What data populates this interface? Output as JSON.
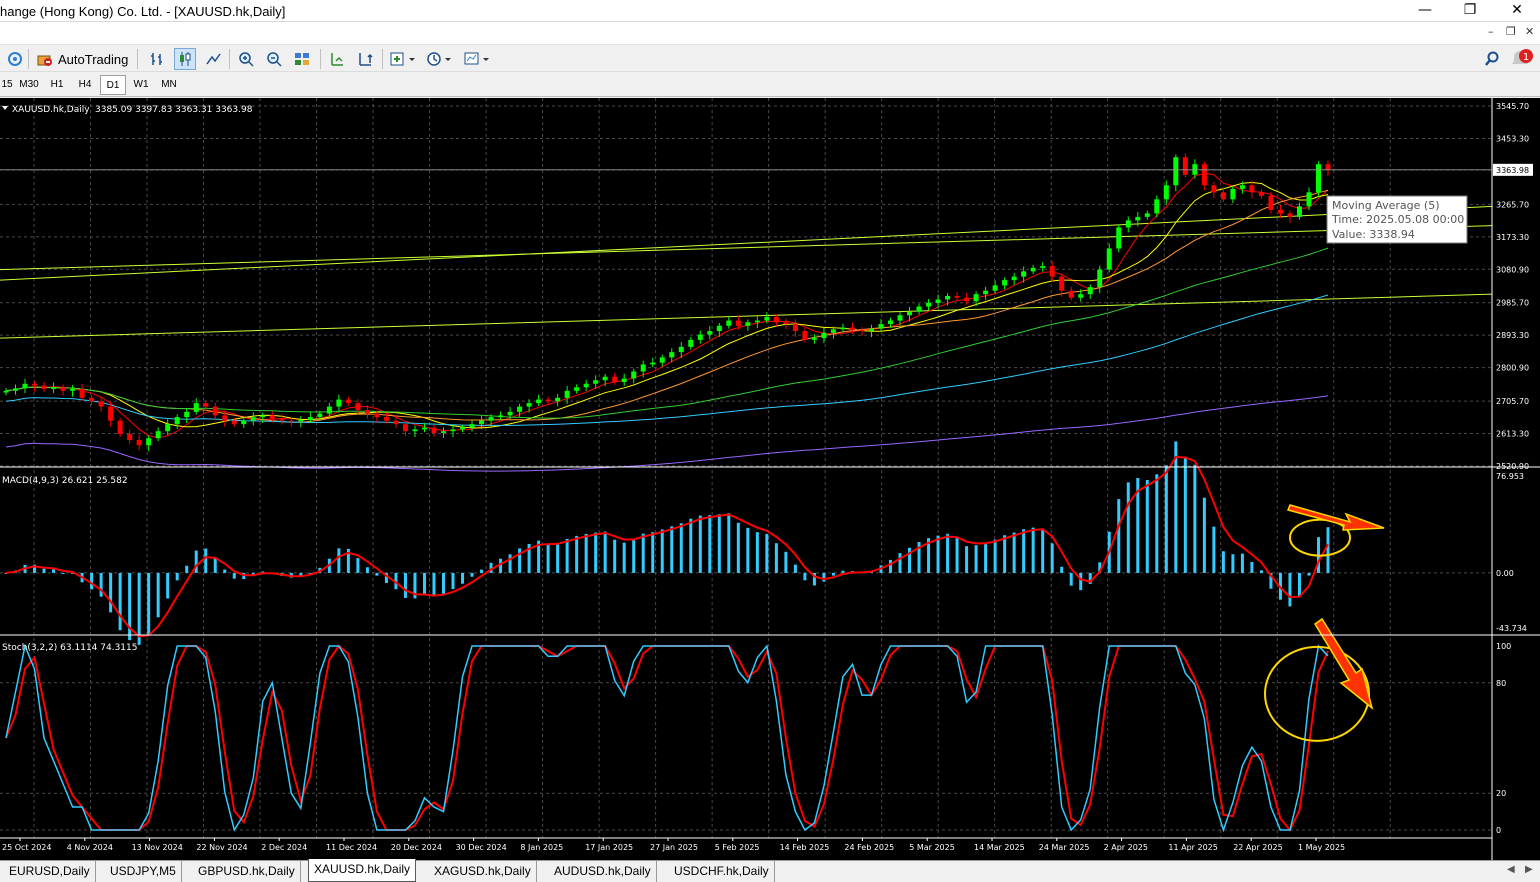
{
  "window": {
    "title": "hange (Hong Kong) Co. Ltd. - [XAUUSD.hk,Daily]",
    "minimize": "—",
    "restore": "❐",
    "close": "✕",
    "mdi_minimize": "–",
    "mdi_restore": "❐",
    "mdi_close": "✕"
  },
  "toolbar": {
    "autotrading_label": "AutoTrading",
    "notification_count": "1",
    "icons": [
      "signal-icon",
      "autotrading-icon",
      "bar-chart-icon",
      "candlestick-icon",
      "line-chart-icon",
      "zoom-in-icon",
      "zoom-out-icon",
      "tile-icon",
      "scroll-icon",
      "autoscroll-icon",
      "indicators-icon",
      "periods-icon",
      "templates-icon",
      "search-icon",
      "notification-icon"
    ]
  },
  "timeframes": [
    "15",
    "M30",
    "H1",
    "H4",
    "D1",
    "W1",
    "MN"
  ],
  "active_timeframe": "D1",
  "colors": {
    "background": "#000000",
    "grid": "#4a4a4a",
    "bull": "#00ff00",
    "bear": "#ff0000",
    "ma5": "#ff0000",
    "ma10": "#ffff00",
    "ma20": "#ff9933",
    "ma50": "#33cc33",
    "ma100": "#33ccff",
    "ma200": "#9966ff",
    "trendline": "#ccff33",
    "macd_hist": "#33ccff",
    "macd_signal": "#ff0000",
    "stoch_main": "#33ccff",
    "stoch_signal": "#ff0000",
    "annotation": "#ffd700",
    "arrow": "#ff3300"
  },
  "chart_data": [
    {
      "type": "candlestick",
      "title": "XAUUSD.hk,Daily",
      "ohlc_label": "3385.09 3397.83 3363.31 3363.98",
      "current_price": "3363.98",
      "ylim": [
        2520.9,
        3545.7
      ],
      "y_ticks": [
        "3545.70",
        "3453.30",
        "3363.98",
        "3265.70",
        "3173.30",
        "3080.90",
        "2985.70",
        "2893.30",
        "2800.90",
        "2705.70",
        "2613.30",
        "2520.90"
      ],
      "x_tick_labels": [
        "25 Oct 2024",
        "4 Nov 2024",
        "13 Nov 2024",
        "22 Nov 2024",
        "2 Dec 2024",
        "11 Dec 2024",
        "20 Dec 2024",
        "30 Dec 2024",
        "8 Jan 2025",
        "17 Jan 2025",
        "27 Jan 2025",
        "5 Feb 2025",
        "14 Feb 2025",
        "24 Feb 2025",
        "5 Mar 2025",
        "14 Mar 2025",
        "24 Mar 2025",
        "2 Apr 2025",
        "11 Apr 2025",
        "22 Apr 2025",
        "1 May 2025"
      ],
      "close_series": [
        2735,
        2742,
        2755,
        2750,
        2740,
        2745,
        2735,
        2740,
        2715,
        2705,
        2690,
        2650,
        2612,
        2595,
        2580,
        2600,
        2620,
        2640,
        2660,
        2675,
        2700,
        2690,
        2665,
        2650,
        2640,
        2650,
        2660,
        2665,
        2655,
        2650,
        2648,
        2652,
        2660,
        2670,
        2690,
        2710,
        2700,
        2680,
        2670,
        2660,
        2650,
        2640,
        2620,
        2625,
        2630,
        2615,
        2620,
        2625,
        2630,
        2640,
        2650,
        2660,
        2665,
        2675,
        2690,
        2700,
        2710,
        2705,
        2715,
        2735,
        2745,
        2755,
        2765,
        2775,
        2760,
        2770,
        2790,
        2810,
        2815,
        2830,
        2845,
        2860,
        2880,
        2895,
        2905,
        2920,
        2935,
        2920,
        2930,
        2935,
        2945,
        2930,
        2925,
        2905,
        2880,
        2885,
        2900,
        2910,
        2915,
        2908,
        2905,
        2912,
        2925,
        2935,
        2950,
        2960,
        2975,
        2985,
        2995,
        3005,
        3000,
        2990,
        3010,
        3020,
        3035,
        3050,
        3060,
        3075,
        3085,
        3090,
        3060,
        3020,
        3000,
        3010,
        3030,
        3080,
        3140,
        3200,
        3220,
        3230,
        3240,
        3280,
        3320,
        3400,
        3350,
        3380,
        3320,
        3300,
        3280,
        3310,
        3320,
        3300,
        3290,
        3250,
        3240,
        3230,
        3260,
        3300,
        3380,
        3363.98
      ],
      "ma_series": [
        {
          "name": "Moving Average (5)",
          "tooltip_time": "2025.05.08 00:00",
          "tooltip_value": "3338.94"
        }
      ]
    },
    {
      "type": "macd",
      "label": "MACD(4,9,3) 26.621 25.582",
      "ylim": [
        -43.734,
        76.953
      ],
      "y_ticks": [
        "76.953",
        "0.00",
        "-43.734"
      ]
    },
    {
      "type": "stochastic",
      "label": "Stoch(3,2,2) 63.1114 74.3115",
      "ylim": [
        0,
        100
      ],
      "y_ticks": [
        "100",
        "80",
        "20",
        "0"
      ]
    }
  ],
  "tooltip": {
    "line1": "Moving Average (5)",
    "line2": "Time: 2025.05.08 00:00",
    "line3": "Value: 3338.94"
  },
  "tabs": [
    "EURUSD,Daily",
    "USDJPY,M5",
    "GBPUSD.hk,Daily",
    "XAUUSD.hk,Daily",
    "XAGUSD.hk,Daily",
    "AUDUSD.hk,Daily",
    "USDCHF.hk,Daily"
  ],
  "active_tab": "XAUUSD.hk,Daily"
}
